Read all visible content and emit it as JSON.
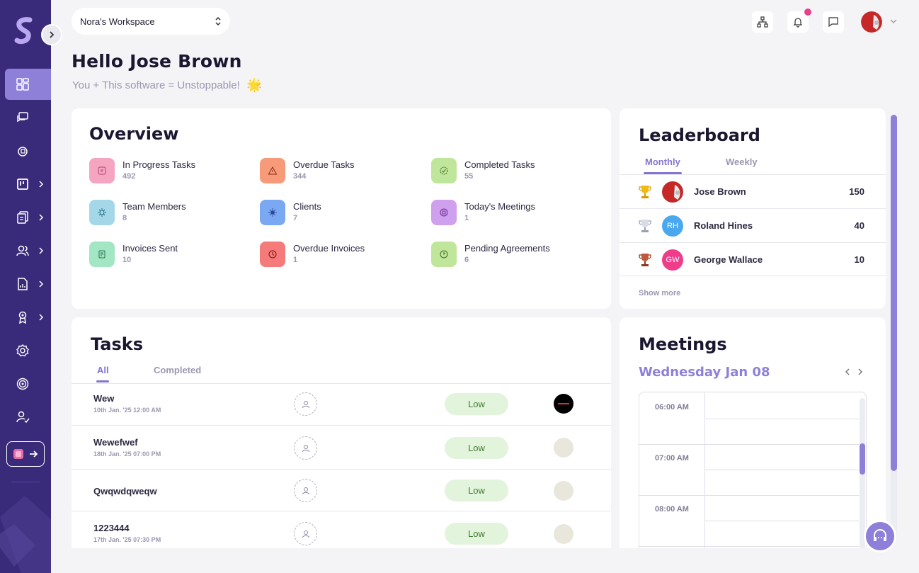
{
  "header": {
    "workspace": "Nora's Workspace",
    "greeting": "Hello Jose Brown",
    "subtitle": "You + This software = Unstoppable!",
    "subtitle_emoji": "🌟"
  },
  "sidebar": {
    "items": [
      {
        "icon": "dashboard-icon",
        "active": true
      },
      {
        "icon": "messages-icon",
        "active": false
      },
      {
        "icon": "meetings-icon",
        "active": false
      },
      {
        "icon": "board-icon",
        "active": false,
        "expandable": true
      },
      {
        "icon": "documents-icon",
        "active": false,
        "expandable": true
      },
      {
        "icon": "users-icon",
        "active": false,
        "expandable": true
      },
      {
        "icon": "reports-icon",
        "active": false,
        "expandable": true
      },
      {
        "icon": "award-icon",
        "active": false,
        "expandable": true
      },
      {
        "icon": "settings-icon",
        "active": false
      },
      {
        "icon": "target-icon",
        "active": false
      },
      {
        "icon": "user-check-icon",
        "active": false
      }
    ]
  },
  "overview": {
    "title": "Overview",
    "items": [
      {
        "label": "In Progress Tasks",
        "value": "492",
        "color": "#f6a5c0"
      },
      {
        "label": "Overdue Tasks",
        "value": "344",
        "color": "#f79a7a"
      },
      {
        "label": "Completed Tasks",
        "value": "55",
        "color": "#bfe69a"
      },
      {
        "label": "Team Members",
        "value": "8",
        "color": "#a4d8e8"
      },
      {
        "label": "Clients",
        "value": "7",
        "color": "#7aa8f2"
      },
      {
        "label": "Today's Meetings",
        "value": "1",
        "color": "#cfa0ee"
      },
      {
        "label": "Invoices Sent",
        "value": "10",
        "color": "#a2e6c4"
      },
      {
        "label": "Overdue Invoices",
        "value": "1",
        "color": "#f57a7a"
      },
      {
        "label": "Pending Agreements",
        "value": "6",
        "color": "#bfe69a"
      }
    ]
  },
  "leaderboard": {
    "title": "Leaderboard",
    "tabs": [
      "Monthly",
      "Weekly"
    ],
    "active_tab": "Monthly",
    "rows": [
      {
        "name": "Jose Brown",
        "score": "150",
        "initials": "",
        "avatar_color": "#c62828",
        "trophy": "gold"
      },
      {
        "name": "Roland Hines",
        "score": "40",
        "initials": "RH",
        "avatar_color": "#4aa8ef",
        "trophy": "silver"
      },
      {
        "name": "George Wallace",
        "score": "10",
        "initials": "GW",
        "avatar_color": "#ef3d8a",
        "trophy": "bronze"
      }
    ],
    "show_more": "Show more"
  },
  "tasks": {
    "title": "Tasks",
    "tabs": [
      "All",
      "Completed"
    ],
    "active_tab": "All",
    "rows": [
      {
        "name": "Wew",
        "date": "10th Jan. '25 12:00 AM",
        "priority": "Low"
      },
      {
        "name": "Wewefwef",
        "date": "18th Jan. '25 07:00 PM",
        "priority": "Low"
      },
      {
        "name": "Qwqwdqweqw",
        "date": "",
        "priority": "Low"
      },
      {
        "name": "1223444",
        "date": "17th Jan. '25 07:30 PM",
        "priority": "Low"
      }
    ]
  },
  "meetings": {
    "title": "Meetings",
    "date": "Wednesday Jan 08",
    "times": [
      "06:00 AM",
      "07:00 AM",
      "08:00 AM"
    ]
  },
  "colors": {
    "sidebar": "#3a2a7a",
    "accent": "#8e80d8",
    "priority_low_bg": "#e3f4dc",
    "notification": "#e8408c"
  }
}
